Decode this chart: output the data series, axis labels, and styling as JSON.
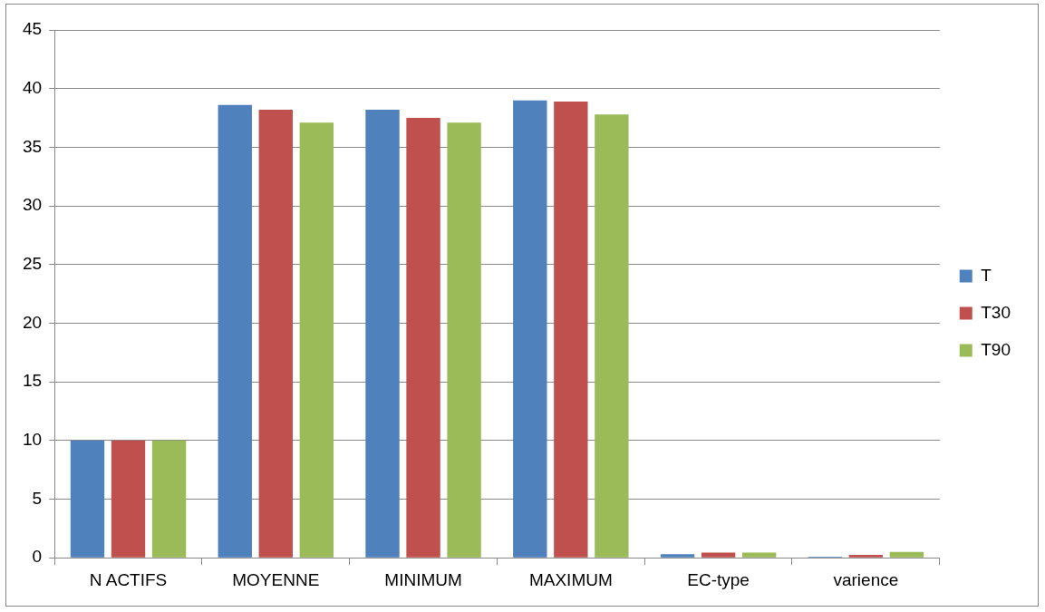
{
  "chart_data": {
    "type": "bar",
    "categories": [
      "N ACTIFS",
      "MOYENNE",
      "MINIMUM",
      "MAXIMUM",
      "EC-type",
      "varience"
    ],
    "series": [
      {
        "name": "T",
        "color": "#4f81bd",
        "values": [
          10,
          38.6,
          38.2,
          39,
          0.3,
          0.1
        ]
      },
      {
        "name": "T30",
        "color": "#c0504d",
        "values": [
          10,
          38.2,
          37.5,
          38.9,
          0.45,
          0.25
        ]
      },
      {
        "name": "T90",
        "color": "#9bbb59",
        "values": [
          10,
          37.1,
          37.1,
          37.8,
          0.45,
          0.5
        ]
      }
    ],
    "ylim": [
      0,
      45
    ],
    "yticks": [
      0,
      5,
      10,
      15,
      20,
      25,
      30,
      35,
      40,
      45
    ],
    "grid": "y",
    "legend": "right"
  }
}
